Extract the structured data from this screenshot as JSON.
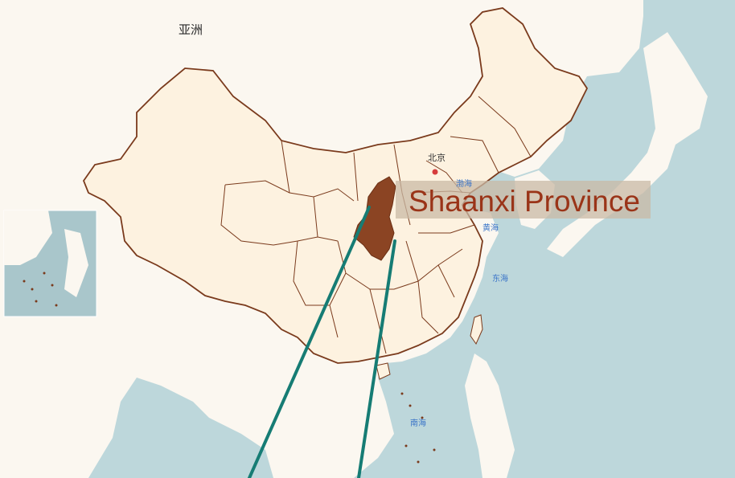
{
  "map": {
    "continent_label": "亚洲",
    "capital_label": "北京",
    "seas": {
      "bohai": "渤海",
      "yellow_sea": "黄海",
      "east_china_sea": "东海",
      "south_china_sea": "南海"
    },
    "highlight": {
      "label": "Shaanxi Province",
      "color": "#8b4423",
      "label_color": "#9a3418"
    },
    "colors": {
      "sea": "#bdd7db",
      "land": "#fbf7f0",
      "china_fill": "#fdf2e0",
      "border": "#7a3a1c",
      "callout_line": "#167c74",
      "capital_marker": "#d63c3c",
      "sea_label": "#3a74c8"
    }
  }
}
